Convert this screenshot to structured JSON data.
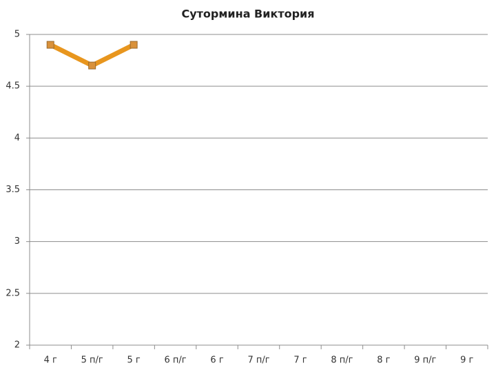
{
  "chart_data": {
    "type": "line",
    "title": "Сутормина Виктория",
    "categories": [
      "4 г",
      "5 п/г",
      "5 г",
      "6 п/г",
      "6 г",
      "7 п/г",
      "7 г",
      "8 п/г",
      "8 г",
      "9 п/г",
      "9 г"
    ],
    "values": [
      4.9,
      4.7,
      4.9,
      null,
      null,
      null,
      null,
      null,
      null,
      null,
      null
    ],
    "color": "#e8961e",
    "marker_color": "#d9913a",
    "ylim": [
      2,
      5
    ],
    "yticks": [
      2,
      2.5,
      3,
      3.5,
      4,
      4.5,
      5
    ],
    "grid": true
  }
}
